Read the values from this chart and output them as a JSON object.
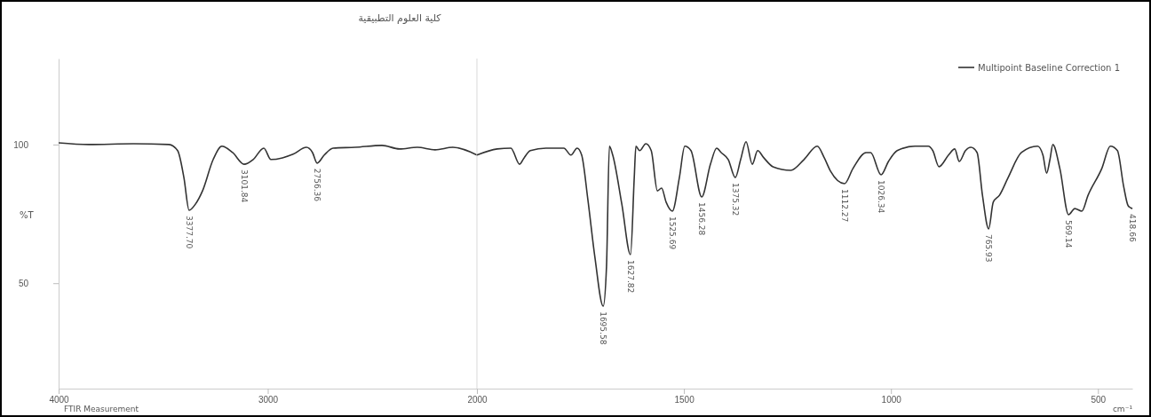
{
  "chart_data": [
    {
      "type": "line",
      "title": "كلية العلوم التطبيقية",
      "ylabel": "%T",
      "xlim": [
        4000,
        2000
      ],
      "xticks": [
        4000,
        3000,
        2000
      ],
      "ylim": [
        12,
        131
      ],
      "yticks": [
        50,
        100
      ],
      "grid": false,
      "marker": "none",
      "line_style": "solid",
      "series": [
        {
          "color": "#333333",
          "x": [
            4000,
            3856,
            3643,
            3473,
            3431,
            3401,
            3376,
            3346,
            3312,
            3261,
            3219,
            3168,
            3113,
            3070,
            3019,
            2985,
            2930,
            2879,
            2815,
            2786,
            2764,
            2730,
            2688,
            2582,
            2454,
            2370,
            2285,
            2200,
            2115,
            2000
          ],
          "values": [
            100.6,
            100,
            100.3,
            100,
            97.8,
            88.1,
            76.3,
            78.5,
            83.3,
            94.6,
            99.4,
            97.1,
            92.9,
            94.6,
            98.7,
            94.6,
            95.2,
            96.5,
            99,
            97.1,
            93.3,
            96.2,
            98.7,
            99,
            99.7,
            98.4,
            99,
            98.1,
            99,
            96.2
          ]
        }
      ],
      "annotations": [
        {
          "text": "3377.70",
          "x": 3376,
          "y": 76.3
        },
        {
          "text": "3101.84",
          "x": 3113,
          "y": 92.9
        },
        {
          "text": "2756.36",
          "x": 2764,
          "y": 93.3
        },
        "FTIR Measurement"
      ]
    },
    {
      "type": "line",
      "xlabel": "cm⁻¹",
      "tick_labels": "x",
      "xlim": [
        2000,
        417
      ],
      "xticks": [
        1500,
        1000,
        500
      ],
      "ylim": [
        12,
        131
      ],
      "legend": "top right",
      "grid": false,
      "marker": "none",
      "line_style": "solid",
      "series": [
        {
          "name": "Multipoint Baseline Correction 1",
          "color": "#333333",
          "x": [
            2000,
            1951,
            1918,
            1897,
            1886,
            1871,
            1833,
            1790,
            1773,
            1758,
            1747,
            1732,
            1715,
            1695,
            1687,
            1680,
            1672,
            1650,
            1629,
            1620,
            1616,
            1607,
            1592,
            1579,
            1564,
            1554,
            1543,
            1528,
            1511,
            1498,
            1483,
            1457,
            1436,
            1421,
            1410,
            1393,
            1376,
            1363,
            1350,
            1335,
            1322,
            1307,
            1285,
            1242,
            1210,
            1178,
            1161,
            1146,
            1112,
            1092,
            1060,
            1049,
            1024,
            1006,
            985,
            942,
            910,
            899,
            884,
            861,
            846,
            835,
            820,
            807,
            792,
            779,
            764,
            753,
            738,
            717,
            685,
            646,
            633,
            624,
            616,
            609,
            592,
            571,
            556,
            539,
            524,
            491,
            470,
            453,
            438,
            427,
            417
          ],
          "values": [
            96.2,
            98.4,
            98.7,
            92.9,
            95.2,
            97.8,
            98.7,
            98.7,
            96.2,
            98.7,
            96.2,
            80.1,
            59.3,
            41.7,
            56.1,
            99.4,
            96.2,
            78.5,
            60.3,
            88.1,
            99.4,
            97.8,
            100.3,
            97.8,
            83.3,
            84.3,
            79.2,
            76,
            88.1,
            99.4,
            97.8,
            81.1,
            92.9,
            98.7,
            97.1,
            94.6,
            88.1,
            94.6,
            101,
            92.9,
            97.8,
            95.2,
            92,
            90.7,
            94.6,
            99.4,
            95.2,
            90.4,
            85.9,
            91.3,
            97.1,
            97.1,
            89.1,
            93.9,
            97.8,
            99.4,
            99.4,
            97.8,
            92,
            96.2,
            98.4,
            93.9,
            97.8,
            99,
            97.1,
            81.7,
            69.6,
            79.2,
            81.7,
            88.1,
            97.1,
            99.4,
            96.2,
            89.7,
            94.6,
            100,
            91.3,
            74.7,
            76.9,
            76,
            81.7,
            91.3,
            99.4,
            97.8,
            84.9,
            77.9,
            76.9
          ]
        }
      ],
      "annotations": [
        {
          "text": "1695.58",
          "x": 1695,
          "y": 41.7
        },
        {
          "text": "1627.82",
          "x": 1629,
          "y": 60.3
        },
        {
          "text": "1525.69",
          "x": 1528,
          "y": 76
        },
        {
          "text": "1456.28",
          "x": 1457,
          "y": 81.1
        },
        {
          "text": "1375.32",
          "x": 1376,
          "y": 88.1
        },
        {
          "text": "1112.27",
          "x": 1112,
          "y": 85.9
        },
        {
          "text": "1026.34",
          "x": 1024,
          "y": 89.1
        },
        {
          "text": "765.93",
          "x": 764,
          "y": 69.6
        },
        {
          "text": "569.14",
          "x": 571,
          "y": 74.7
        },
        {
          "text": "418.66",
          "x": 417,
          "y": 76.9
        }
      ]
    }
  ]
}
